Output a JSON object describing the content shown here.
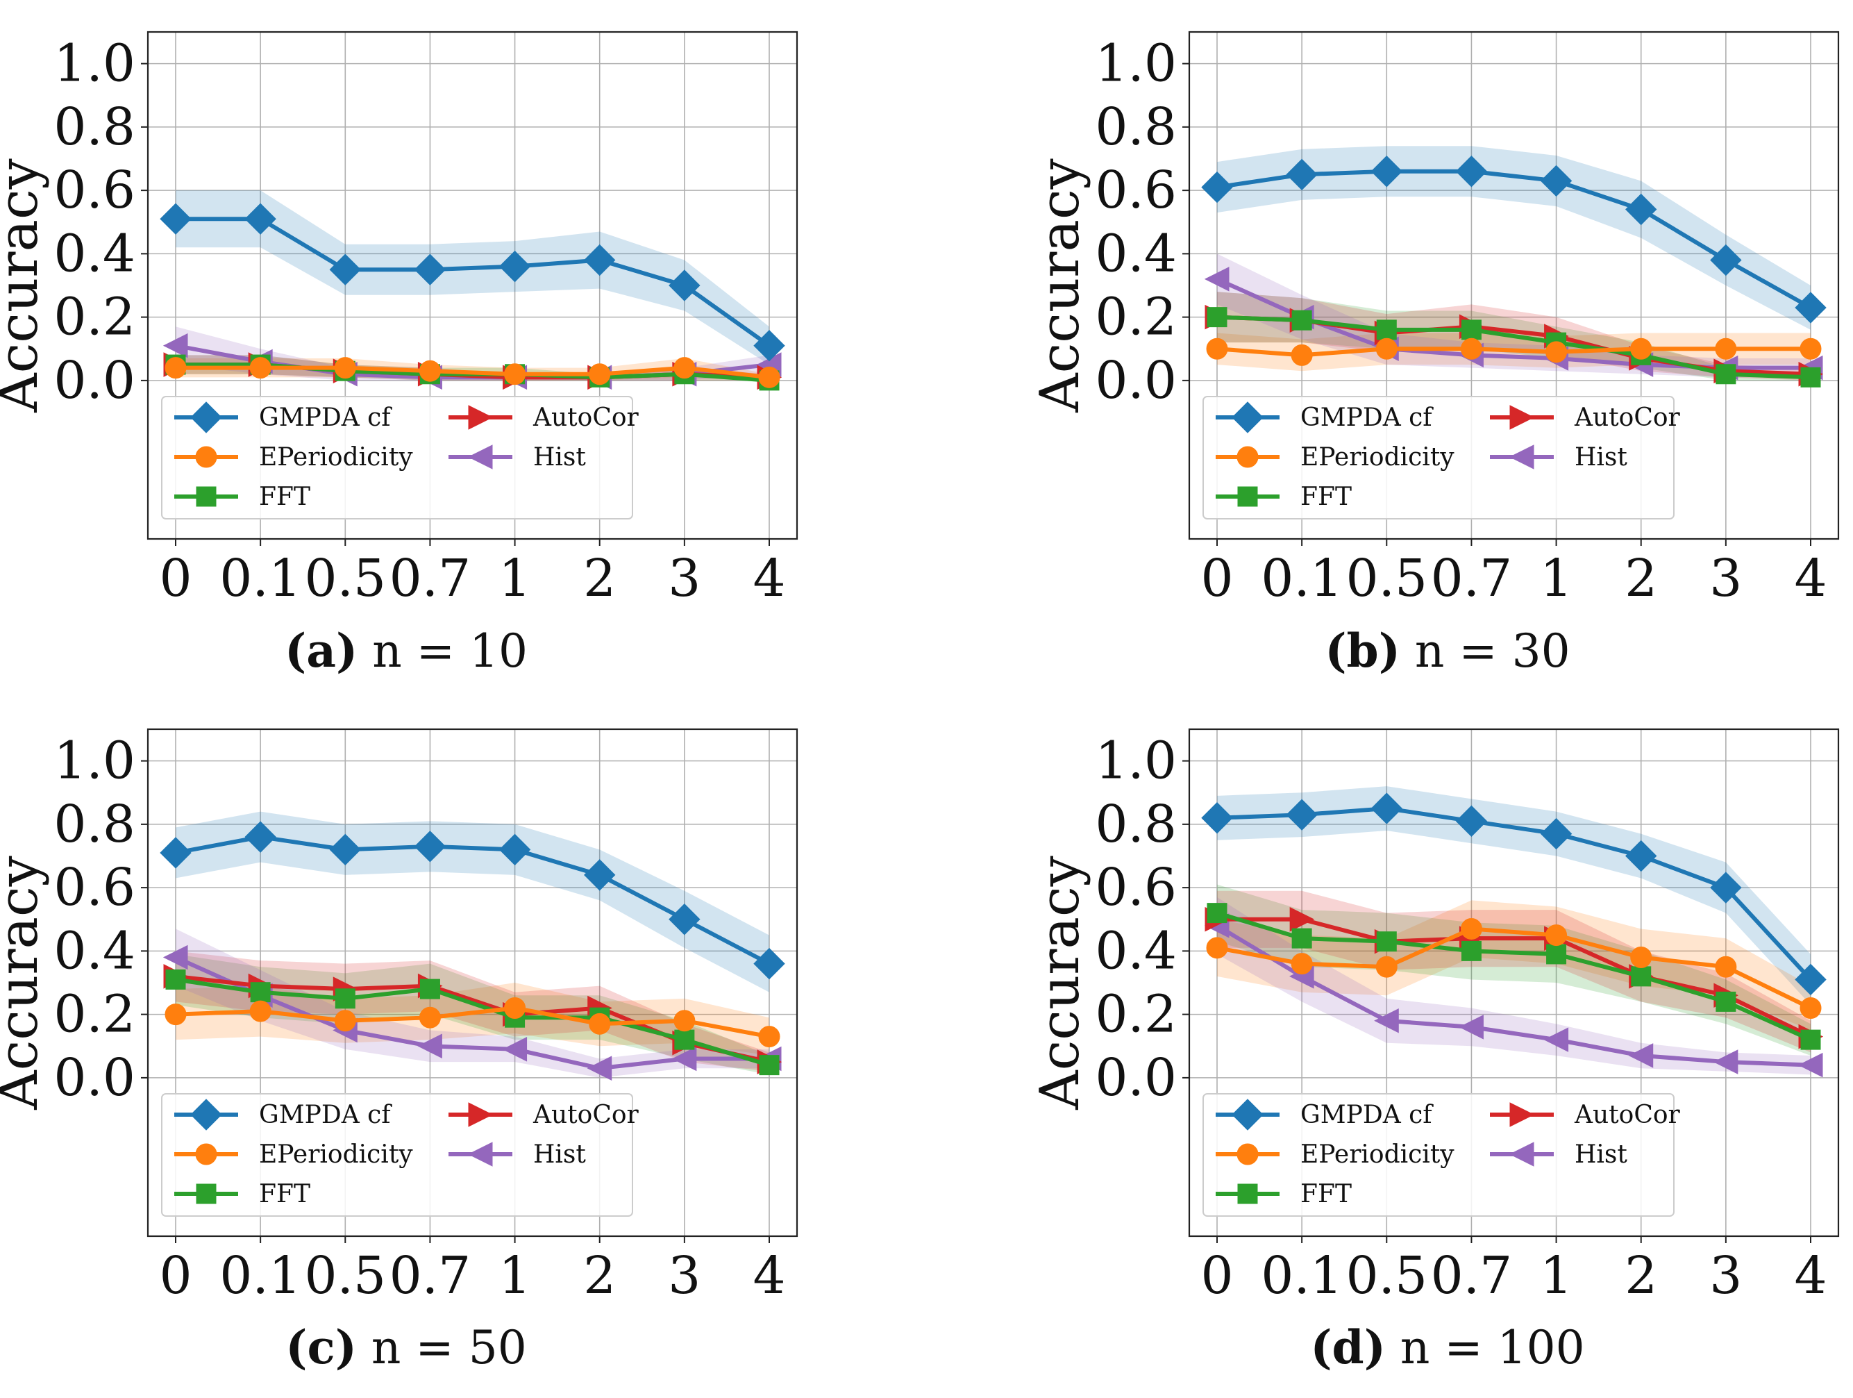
{
  "figure": {
    "y_label": "Accuracy",
    "x_categories": [
      "0",
      "0.1",
      "0.5",
      "0.7",
      "1",
      "2",
      "3",
      "4"
    ],
    "y_ticks": [
      "0.0",
      "0.2",
      "0.4",
      "0.6",
      "0.8",
      "1.0"
    ],
    "series_style": [
      {
        "name": "GMPDA cf",
        "color": "#1f77b4",
        "marker": "diamond"
      },
      {
        "name": "EPeriodicity",
        "color": "#ff7f0e",
        "marker": "circle"
      },
      {
        "name": "FFT",
        "color": "#2ca02c",
        "marker": "square"
      },
      {
        "name": "AutoCor",
        "color": "#d62728",
        "marker": "triangle-right"
      },
      {
        "name": "Hist",
        "color": "#9467bd",
        "marker": "triangle-left"
      }
    ]
  },
  "chart_data": [
    {
      "type": "line",
      "title": "n = 10",
      "caption_label": "(a)",
      "caption_text": " n = 10",
      "xlabel": "",
      "ylabel": "Accuracy",
      "ylim": [
        -0.5,
        1.1
      ],
      "categories": [
        "0",
        "0.1",
        "0.5",
        "0.7",
        "1",
        "2",
        "3",
        "4"
      ],
      "legend": "lower-left, two columns",
      "series": [
        {
          "name": "GMPDA cf",
          "values": [
            0.51,
            0.51,
            0.35,
            0.35,
            0.36,
            0.38,
            0.3,
            0.11
          ],
          "band": [
            0.09,
            0.09,
            0.08,
            0.08,
            0.08,
            0.09,
            0.08,
            0.06
          ]
        },
        {
          "name": "EPeriodicity",
          "values": [
            0.04,
            0.04,
            0.04,
            0.03,
            0.02,
            0.02,
            0.04,
            0.01
          ],
          "band": [
            0.03,
            0.03,
            0.03,
            0.02,
            0.02,
            0.02,
            0.03,
            0.01
          ]
        },
        {
          "name": "FFT",
          "values": [
            0.05,
            0.05,
            0.03,
            0.02,
            0.02,
            0.01,
            0.02,
            0.0
          ],
          "band": [
            0.03,
            0.03,
            0.02,
            0.02,
            0.02,
            0.01,
            0.02,
            0.0
          ]
        },
        {
          "name": "AutoCor",
          "values": [
            0.05,
            0.05,
            0.03,
            0.02,
            0.01,
            0.01,
            0.02,
            0.01
          ],
          "band": [
            0.03,
            0.03,
            0.02,
            0.02,
            0.01,
            0.01,
            0.02,
            0.01
          ]
        },
        {
          "name": "Hist",
          "values": [
            0.11,
            0.06,
            0.02,
            0.01,
            0.01,
            0.01,
            0.02,
            0.05
          ],
          "band": [
            0.06,
            0.04,
            0.02,
            0.01,
            0.01,
            0.01,
            0.02,
            0.03
          ]
        }
      ]
    },
    {
      "type": "line",
      "title": "n = 30",
      "caption_label": "(b)",
      "caption_text": " n = 30",
      "xlabel": "",
      "ylabel": "Accuracy",
      "ylim": [
        -0.5,
        1.1
      ],
      "categories": [
        "0",
        "0.1",
        "0.5",
        "0.7",
        "1",
        "2",
        "3",
        "4"
      ],
      "legend": "lower-left, two columns",
      "series": [
        {
          "name": "GMPDA cf",
          "values": [
            0.61,
            0.65,
            0.66,
            0.66,
            0.63,
            0.54,
            0.38,
            0.23
          ],
          "band": [
            0.08,
            0.08,
            0.08,
            0.08,
            0.08,
            0.09,
            0.08,
            0.07
          ]
        },
        {
          "name": "EPeriodicity",
          "values": [
            0.1,
            0.08,
            0.1,
            0.1,
            0.09,
            0.1,
            0.1,
            0.1
          ],
          "band": [
            0.05,
            0.05,
            0.05,
            0.05,
            0.05,
            0.05,
            0.05,
            0.05
          ]
        },
        {
          "name": "FFT",
          "values": [
            0.2,
            0.19,
            0.16,
            0.16,
            0.12,
            0.08,
            0.02,
            0.01
          ],
          "band": [
            0.08,
            0.07,
            0.06,
            0.06,
            0.05,
            0.04,
            0.02,
            0.01
          ]
        },
        {
          "name": "AutoCor",
          "values": [
            0.2,
            0.19,
            0.15,
            0.17,
            0.14,
            0.07,
            0.03,
            0.02
          ],
          "band": [
            0.08,
            0.07,
            0.06,
            0.07,
            0.06,
            0.04,
            0.02,
            0.02
          ]
        },
        {
          "name": "Hist",
          "values": [
            0.32,
            0.2,
            0.1,
            0.08,
            0.07,
            0.05,
            0.04,
            0.04
          ],
          "band": [
            0.08,
            0.07,
            0.05,
            0.04,
            0.04,
            0.03,
            0.03,
            0.03
          ]
        }
      ]
    },
    {
      "type": "line",
      "title": "n = 50",
      "caption_label": "(c)",
      "caption_text": " n = 50",
      "xlabel": "",
      "ylabel": "Accuracy",
      "ylim": [
        -0.5,
        1.1
      ],
      "categories": [
        "0",
        "0.1",
        "0.5",
        "0.7",
        "1",
        "2",
        "3",
        "4"
      ],
      "legend": "lower-left, two columns",
      "series": [
        {
          "name": "GMPDA cf",
          "values": [
            0.71,
            0.76,
            0.72,
            0.73,
            0.72,
            0.64,
            0.5,
            0.36
          ],
          "band": [
            0.08,
            0.08,
            0.08,
            0.08,
            0.08,
            0.08,
            0.09,
            0.09
          ]
        },
        {
          "name": "EPeriodicity",
          "values": [
            0.2,
            0.21,
            0.18,
            0.19,
            0.22,
            0.17,
            0.18,
            0.13
          ],
          "band": [
            0.08,
            0.08,
            0.07,
            0.07,
            0.08,
            0.07,
            0.07,
            0.06
          ]
        },
        {
          "name": "FFT",
          "values": [
            0.31,
            0.27,
            0.25,
            0.28,
            0.19,
            0.19,
            0.12,
            0.04
          ],
          "band": [
            0.08,
            0.08,
            0.08,
            0.08,
            0.07,
            0.07,
            0.06,
            0.03
          ]
        },
        {
          "name": "AutoCor",
          "values": [
            0.32,
            0.29,
            0.28,
            0.29,
            0.2,
            0.22,
            0.11,
            0.05
          ],
          "band": [
            0.08,
            0.08,
            0.08,
            0.08,
            0.07,
            0.07,
            0.06,
            0.03
          ]
        },
        {
          "name": "Hist",
          "values": [
            0.38,
            0.26,
            0.15,
            0.1,
            0.09,
            0.03,
            0.06,
            0.06
          ],
          "band": [
            0.09,
            0.08,
            0.06,
            0.05,
            0.04,
            0.03,
            0.03,
            0.03
          ]
        }
      ]
    },
    {
      "type": "line",
      "title": "n = 100",
      "caption_label": "(d)",
      "caption_text": " n = 100",
      "xlabel": "",
      "ylabel": "Accuracy",
      "ylim": [
        -0.5,
        1.1
      ],
      "categories": [
        "0",
        "0.1",
        "0.5",
        "0.7",
        "1",
        "2",
        "3",
        "4"
      ],
      "legend": "lower-left, two columns",
      "series": [
        {
          "name": "GMPDA cf",
          "values": [
            0.82,
            0.83,
            0.85,
            0.81,
            0.77,
            0.7,
            0.6,
            0.31
          ],
          "band": [
            0.07,
            0.07,
            0.07,
            0.07,
            0.07,
            0.07,
            0.08,
            0.08
          ]
        },
        {
          "name": "EPeriodicity",
          "values": [
            0.41,
            0.36,
            0.35,
            0.47,
            0.45,
            0.38,
            0.35,
            0.22
          ],
          "band": [
            0.09,
            0.09,
            0.09,
            0.09,
            0.09,
            0.09,
            0.09,
            0.07
          ]
        },
        {
          "name": "FFT",
          "values": [
            0.52,
            0.44,
            0.43,
            0.4,
            0.39,
            0.32,
            0.24,
            0.12
          ],
          "band": [
            0.09,
            0.09,
            0.09,
            0.09,
            0.09,
            0.08,
            0.07,
            0.05
          ]
        },
        {
          "name": "AutoCor",
          "values": [
            0.5,
            0.5,
            0.43,
            0.44,
            0.44,
            0.32,
            0.26,
            0.13
          ],
          "band": [
            0.09,
            0.09,
            0.09,
            0.09,
            0.09,
            0.08,
            0.07,
            0.05
          ]
        },
        {
          "name": "Hist",
          "values": [
            0.48,
            0.32,
            0.18,
            0.16,
            0.12,
            0.07,
            0.05,
            0.04
          ],
          "band": [
            0.09,
            0.08,
            0.07,
            0.06,
            0.05,
            0.04,
            0.03,
            0.03
          ]
        }
      ]
    }
  ]
}
